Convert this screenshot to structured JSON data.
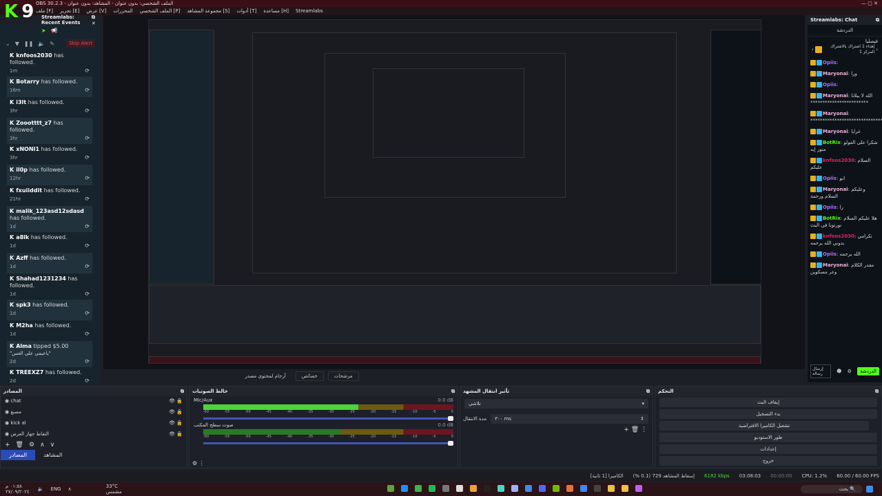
{
  "window": {
    "title": "OBS 30.2.3 - الملف الشخصي: بدون عنوان - المشاهد: بدون عنوان",
    "logo": "K9"
  },
  "menu": [
    "ملف [F]",
    "تحرير [E]",
    "عرض [V]",
    "المحررات",
    "الملف الشخصي [P]",
    "مجموعة المشاهد [S]",
    "أدوات [T]",
    "مساعدة [H]",
    "Streamlabs"
  ],
  "events": {
    "title": "Streamlabs: Recent Events",
    "skip_alert": "Skip Alert",
    "items": [
      {
        "user": "knfoos2030",
        "action": "has followed.",
        "time": "1m"
      },
      {
        "user": "Botarry",
        "action": "has followed.",
        "time": "16m"
      },
      {
        "user": "i3lt",
        "action": "has followed.",
        "time": "3hr"
      },
      {
        "user": "Zoootttt_z7",
        "action": "has followed.",
        "time": "3hr"
      },
      {
        "user": "xNONI1",
        "action": "has followed.",
        "time": "3hr"
      },
      {
        "user": "il0p",
        "action": "has followed.",
        "time": "12hr"
      },
      {
        "user": "fxuiiddit",
        "action": "has followed.",
        "time": "21hr"
      },
      {
        "user": "malik_123asd12sdasd",
        "action": "has followed.",
        "time": "1d"
      },
      {
        "user": "a8lk",
        "action": "has followed.",
        "time": "1d"
      },
      {
        "user": "Azff",
        "action": "has followed.",
        "time": "1d"
      },
      {
        "user": "Shahad1231234",
        "action": "has followed.",
        "time": "1d"
      },
      {
        "user": "spk3",
        "action": "has followed.",
        "time": "1d"
      },
      {
        "user": "M2ha",
        "action": "has followed.",
        "time": "1d"
      },
      {
        "user": "Alma",
        "action": "tipped $5.00",
        "time": "2d",
        "note": "\"ياعيمي على الغس\""
      },
      {
        "user": "TREEXZ7",
        "action": "has followed.",
        "time": "2d"
      }
    ]
  },
  "scene_tabs": [
    "أرجام لمحتوى مصدر",
    "خصائص",
    "مرشحات"
  ],
  "chat": {
    "title": "Streamlabs: Chat",
    "tab": "الدردشة",
    "pinned_user": "فيصليا",
    "pinned_text": "إهداء 1 اشتراك بالاشتراك المركز 1",
    "messages": [
      {
        "user": "Opiis",
        "color": "#a970ff",
        "text": ""
      },
      {
        "user": "Maryonai",
        "color": "#f0b0d8",
        "text": "ورا"
      },
      {
        "user": "Opiis",
        "color": "#a970ff",
        "text": ""
      },
      {
        "user": "Maryonai",
        "color": "#f0b0d8",
        "text": "الله لا يبلانا ************************"
      },
      {
        "user": "Maryonai",
        "color": "#f0b0d8",
        "text": "******************************"
      },
      {
        "user": "Maryonai",
        "color": "#f0b0d8",
        "text": "غرايا"
      },
      {
        "user": "BotRix",
        "color": "#53fc18",
        "text": "شكرا على الفولو منور إيه"
      },
      {
        "user": "knfoos2030",
        "color": "#e0245e",
        "text": "السلام عليكم"
      },
      {
        "user": "Opiis",
        "color": "#a970ff",
        "text": "ابو"
      },
      {
        "user": "Maryonai",
        "color": "#f0b0d8",
        "text": "وعليكم السلام ورحمة"
      },
      {
        "user": "Opiis",
        "color": "#a970ff",
        "text": "را"
      },
      {
        "user": "BotRix",
        "color": "#53fc18",
        "text": "هلا عليكم السلام نورتونا في البث"
      },
      {
        "user": "knfoos2030",
        "color": "#e0245e",
        "text": "تكرامي بدوني الله يرحمه"
      },
      {
        "user": "Opiis",
        "color": "#a970ff",
        "text": "الله يرحمه"
      },
      {
        "user": "Maryonai",
        "color": "#f0b0d8",
        "text": "مقدر الكلام وعر مسكوين"
      }
    ],
    "send_label": "إرسال رسالة",
    "chat_button": "الدردشة"
  },
  "sources": {
    "title": "المصادر",
    "items": [
      "chat",
      "مصبغ",
      "kick al",
      "التقاط جهاز العرض"
    ],
    "tab_active": "المصادر",
    "tab_other": "المشاهد"
  },
  "mixer": {
    "title": "خالط الصوتيات",
    "channels": [
      {
        "name": "Mic/Aux",
        "db": "0.0 dB",
        "level": 0.62
      },
      {
        "name": "صوت سطح المكتب",
        "db": "0.0 dB",
        "level": 0
      }
    ],
    "ticks": [
      "-60",
      "-55",
      "-50",
      "-45",
      "-40",
      "-35",
      "-30",
      "-25",
      "-20",
      "-15",
      "-10",
      "-5",
      "0"
    ]
  },
  "transitions": {
    "title": "تأثير انتقال المشهد",
    "selected": "تلاشي",
    "duration_label": "مدة الانتقال",
    "duration": "٣٠٠ ms"
  },
  "controls": {
    "title": "التحكم",
    "buttons": [
      "إيقاف البث",
      "بدء التسجيل",
      "تشغيل الكاميرا الافتراضية",
      "طور الاستوديو",
      "إعدادات",
      "خروج"
    ]
  },
  "status": [
    "الكاميرا [1 ثانية]",
    "إسقاط المشاهد 729 (0.1 %)",
    "6182 kbps",
    "03:08:03",
    "00:00:00",
    "CPU: 1.2%",
    "60.00 / 60.00 FPS"
  ],
  "taskbar": {
    "time": "٠١:٥٨ م",
    "date": "٢٧/٠٩/٢٠٢٤",
    "lang": "ENG",
    "weather": "33°C",
    "weather_desc": "مشمس",
    "search": "بحث"
  }
}
